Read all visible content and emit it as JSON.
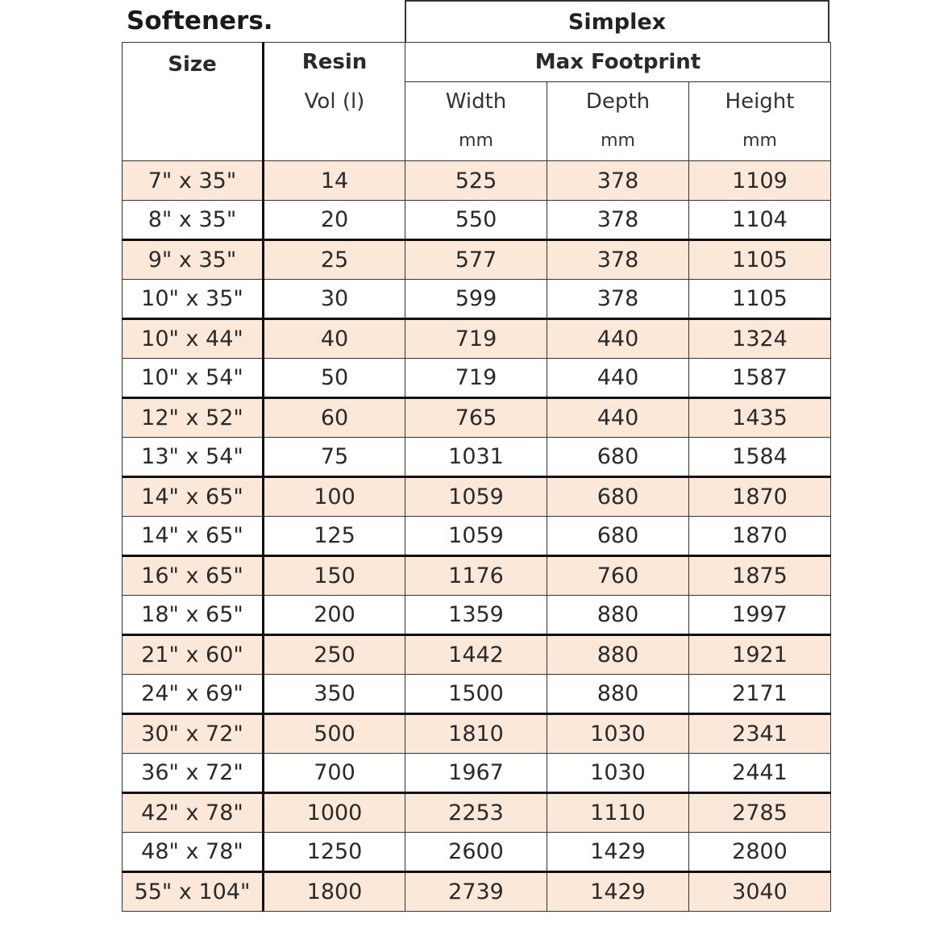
{
  "title": "Softeners.",
  "group_header": "Simplex",
  "headers": {
    "size": "Size",
    "resin": "Resin",
    "resin_unit": "Vol (l)",
    "footprint": "Max Footprint",
    "width": "Width",
    "depth": "Depth",
    "height": "Height",
    "unit": "mm"
  },
  "row_highlight_color": "#fce8d9",
  "rows": [
    [
      "7\" x 35\"",
      "14",
      "525",
      "378",
      "1109"
    ],
    [
      "8\" x 35\"",
      "20",
      "550",
      "378",
      "1104"
    ],
    [
      "9\" x 35\"",
      "25",
      "577",
      "378",
      "1105"
    ],
    [
      "10\" x 35\"",
      "30",
      "599",
      "378",
      "1105"
    ],
    [
      "10\" x 44\"",
      "40",
      "719",
      "440",
      "1324"
    ],
    [
      "10\" x 54\"",
      "50",
      "719",
      "440",
      "1587"
    ],
    [
      "12\" x 52\"",
      "60",
      "765",
      "440",
      "1435"
    ],
    [
      "13\" x 54\"",
      "75",
      "1031",
      "680",
      "1584"
    ],
    [
      "14\" x 65\"",
      "100",
      "1059",
      "680",
      "1870"
    ],
    [
      "14\" x 65\"",
      "125",
      "1059",
      "680",
      "1870"
    ],
    [
      "16\" x 65\"",
      "150",
      "1176",
      "760",
      "1875"
    ],
    [
      "18\" x 65\"",
      "200",
      "1359",
      "880",
      "1997"
    ],
    [
      "21\" x 60\"",
      "250",
      "1442",
      "880",
      "1921"
    ],
    [
      "24\" x 69\"",
      "350",
      "1500",
      "880",
      "2171"
    ],
    [
      "30\" x 72\"",
      "500",
      "1810",
      "1030",
      "2341"
    ],
    [
      "36\" x 72\"",
      "700",
      "1967",
      "1030",
      "2441"
    ],
    [
      "42\" x 78\"",
      "1000",
      "2253",
      "1110",
      "2785"
    ],
    [
      "48\" x 78\"",
      "1250",
      "2600",
      "1429",
      "2800"
    ],
    [
      "55\" x 104\"",
      "1800",
      "2739",
      "1429",
      "3040"
    ]
  ]
}
